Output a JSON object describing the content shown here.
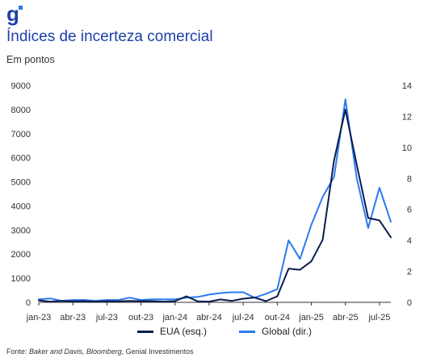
{
  "brand": {
    "logo_letter": "g",
    "accent": "#1f3fa8"
  },
  "header": {
    "title": "Índices de incerteza comercial",
    "subtitle": "Em pontos"
  },
  "footer": {
    "source_prefix": "Fonte: ",
    "source_italic": "Baker and Davis, Bloomberg",
    "source_suffix": ", Genial Investimentos"
  },
  "chart_data": {
    "type": "line",
    "title": "Índices de incerteza comercial",
    "subtitle": "Em pontos",
    "xlabel": "",
    "ylabel": "",
    "grid": false,
    "legend_position": "bottom-center",
    "x_tick_labels": [
      "jan-23",
      "abr-23",
      "jul-23",
      "out-23",
      "jan-24",
      "abr-24",
      "jul-24",
      "out-24",
      "jan-25",
      "abr-25",
      "jul-25"
    ],
    "x": [
      "jan-23",
      "fev-23",
      "mar-23",
      "abr-23",
      "mai-23",
      "jun-23",
      "jul-23",
      "ago-23",
      "set-23",
      "out-23",
      "nov-23",
      "dez-23",
      "jan-24",
      "fev-24",
      "mar-24",
      "abr-24",
      "mai-24",
      "jun-24",
      "jul-24",
      "ago-24",
      "set-24",
      "out-24",
      "nov-24",
      "dez-24",
      "jan-25",
      "fev-25",
      "mar-25",
      "abr-25",
      "mai-25",
      "jun-25",
      "jul-25",
      "ago-25"
    ],
    "y_left": {
      "ticks": [
        "0",
        "1000",
        "2000",
        "3000",
        "4000",
        "5000",
        "6000",
        "7000",
        "8000",
        "9000"
      ],
      "ylim": [
        0,
        9000
      ]
    },
    "y_right": {
      "ticks": [
        "0",
        "2",
        "4",
        "6",
        "8",
        "10",
        "12",
        "14"
      ],
      "ylim": [
        0,
        14
      ]
    },
    "series": [
      {
        "name": "EUA (esq.)",
        "axis": "left",
        "color": "#0b1d4e",
        "values": [
          80,
          30,
          60,
          40,
          50,
          30,
          50,
          40,
          60,
          50,
          50,
          30,
          50,
          250,
          40,
          30,
          120,
          60,
          150,
          200,
          50,
          250,
          1400,
          1350,
          1700,
          2600,
          5900,
          8000,
          5700,
          3500,
          3400,
          2700
        ]
      },
      {
        "name": "Global (dir.)",
        "axis": "right",
        "color": "#2b7bf0",
        "values": [
          0.2,
          0.25,
          0.1,
          0.15,
          0.15,
          0.1,
          0.15,
          0.15,
          0.3,
          0.15,
          0.2,
          0.2,
          0.2,
          0.3,
          0.35,
          0.5,
          0.6,
          0.65,
          0.65,
          0.3,
          0.55,
          0.85,
          4.0,
          2.8,
          5.0,
          6.8,
          8.1,
          13.1,
          8.0,
          4.8,
          7.4,
          5.2
        ]
      }
    ]
  }
}
